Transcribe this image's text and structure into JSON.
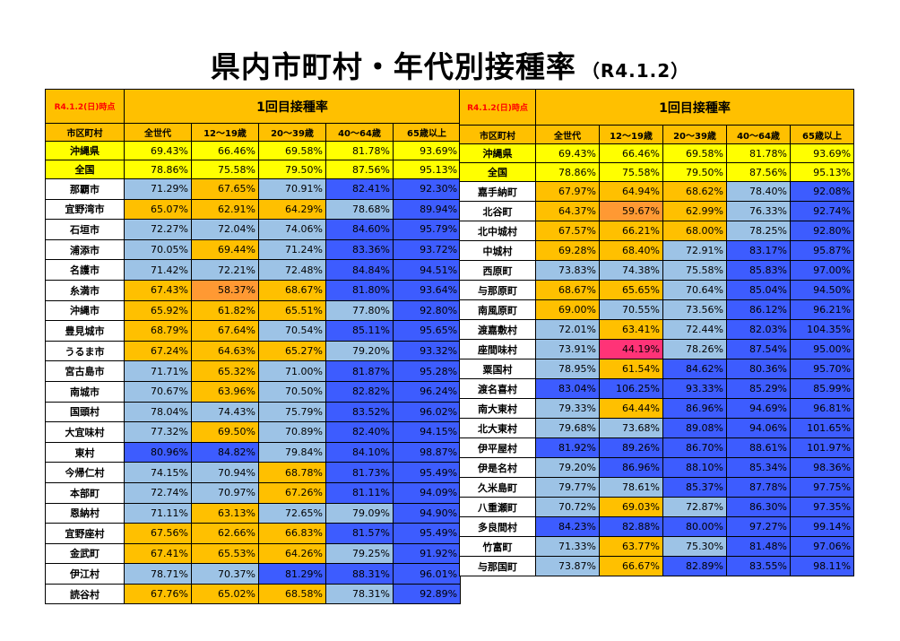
{
  "title": "県内市町村・年代別接種率",
  "subtitle": "（R4.1.2）",
  "legend_colors": {
    "yellow": "#FFFF00",
    "orange": "#FFC000",
    "dark_orange": "#FF9933",
    "pink": "#FF3377",
    "light_blue": "#9DC3E6",
    "blue": "#3D5CFF",
    "header": "#FFC000"
  },
  "tables": [
    {
      "as_of": "R4.1.2(日)時点",
      "header": "1回目接種率",
      "columns": [
        "市区町村",
        "全世代",
        "12～19歳",
        "20～39歳",
        "40～64歳",
        "65歳以上"
      ],
      "summary_rows": [
        {
          "name": "沖縄県",
          "values": [
            "69.43%",
            "66.46%",
            "69.58%",
            "81.78%",
            "93.69%"
          ]
        },
        {
          "name": "全国",
          "values": [
            "78.86%",
            "75.58%",
            "79.50%",
            "87.56%",
            "95.13%"
          ]
        }
      ],
      "rows": [
        {
          "name": "那覇市",
          "values": [
            "71.29%",
            "67.65%",
            "70.91%",
            "82.41%",
            "92.30%"
          ],
          "colors": [
            "lb",
            "or",
            "lb",
            "bl",
            "bl"
          ]
        },
        {
          "name": "宜野湾市",
          "values": [
            "65.07%",
            "62.91%",
            "64.29%",
            "78.68%",
            "89.94%"
          ],
          "colors": [
            "or",
            "or",
            "or",
            "lb",
            "bl"
          ]
        },
        {
          "name": "石垣市",
          "values": [
            "72.27%",
            "72.04%",
            "74.06%",
            "84.60%",
            "95.79%"
          ],
          "colors": [
            "lb",
            "lb",
            "lb",
            "bl",
            "bl"
          ]
        },
        {
          "name": "浦添市",
          "values": [
            "70.05%",
            "69.44%",
            "71.24%",
            "83.36%",
            "93.72%"
          ],
          "colors": [
            "lb",
            "or",
            "lb",
            "bl",
            "bl"
          ]
        },
        {
          "name": "名護市",
          "values": [
            "71.42%",
            "72.21%",
            "72.48%",
            "84.84%",
            "94.51%"
          ],
          "colors": [
            "lb",
            "lb",
            "lb",
            "bl",
            "bl"
          ]
        },
        {
          "name": "糸満市",
          "values": [
            "67.43%",
            "58.37%",
            "68.67%",
            "81.80%",
            "93.64%"
          ],
          "colors": [
            "or",
            "do",
            "or",
            "bl",
            "bl"
          ]
        },
        {
          "name": "沖縄市",
          "values": [
            "65.92%",
            "61.82%",
            "65.51%",
            "77.80%",
            "92.80%"
          ],
          "colors": [
            "or",
            "or",
            "or",
            "lb",
            "bl"
          ]
        },
        {
          "name": "豊見城市",
          "values": [
            "68.79%",
            "67.64%",
            "70.54%",
            "85.11%",
            "95.65%"
          ],
          "colors": [
            "or",
            "or",
            "lb",
            "bl",
            "bl"
          ]
        },
        {
          "name": "うるま市",
          "values": [
            "67.24%",
            "64.63%",
            "65.27%",
            "79.20%",
            "93.32%"
          ],
          "colors": [
            "or",
            "or",
            "or",
            "lb",
            "bl"
          ]
        },
        {
          "name": "宮古島市",
          "values": [
            "71.71%",
            "65.32%",
            "71.00%",
            "81.87%",
            "95.28%"
          ],
          "colors": [
            "lb",
            "or",
            "lb",
            "bl",
            "bl"
          ]
        },
        {
          "name": "南城市",
          "values": [
            "70.67%",
            "63.96%",
            "70.50%",
            "82.82%",
            "96.24%"
          ],
          "colors": [
            "lb",
            "or",
            "lb",
            "bl",
            "bl"
          ]
        },
        {
          "name": "国頭村",
          "values": [
            "78.04%",
            "74.43%",
            "75.79%",
            "83.52%",
            "96.02%"
          ],
          "colors": [
            "lb",
            "lb",
            "lb",
            "bl",
            "bl"
          ]
        },
        {
          "name": "大宜味村",
          "values": [
            "77.32%",
            "69.50%",
            "70.89%",
            "82.40%",
            "94.15%"
          ],
          "colors": [
            "lb",
            "or",
            "lb",
            "bl",
            "bl"
          ]
        },
        {
          "name": "東村",
          "values": [
            "80.96%",
            "84.82%",
            "79.84%",
            "84.10%",
            "98.87%"
          ],
          "colors": [
            "bl",
            "bl",
            "lb",
            "bl",
            "bl"
          ]
        },
        {
          "name": "今帰仁村",
          "values": [
            "74.15%",
            "70.94%",
            "68.78%",
            "81.73%",
            "95.49%"
          ],
          "colors": [
            "lb",
            "lb",
            "or",
            "bl",
            "bl"
          ]
        },
        {
          "name": "本部町",
          "values": [
            "72.74%",
            "70.97%",
            "67.26%",
            "81.11%",
            "94.09%"
          ],
          "colors": [
            "lb",
            "lb",
            "or",
            "bl",
            "bl"
          ]
        },
        {
          "name": "恩納村",
          "values": [
            "71.11%",
            "63.13%",
            "72.65%",
            "79.09%",
            "94.90%"
          ],
          "colors": [
            "lb",
            "or",
            "lb",
            "lb",
            "bl"
          ]
        },
        {
          "name": "宜野座村",
          "values": [
            "67.56%",
            "62.66%",
            "66.83%",
            "81.57%",
            "95.49%"
          ],
          "colors": [
            "or",
            "or",
            "or",
            "bl",
            "bl"
          ]
        },
        {
          "name": "金武町",
          "values": [
            "67.41%",
            "65.53%",
            "64.26%",
            "79.25%",
            "91.92%"
          ],
          "colors": [
            "or",
            "or",
            "or",
            "lb",
            "bl"
          ]
        },
        {
          "name": "伊江村",
          "values": [
            "78.71%",
            "70.37%",
            "81.29%",
            "88.31%",
            "96.01%"
          ],
          "colors": [
            "lb",
            "lb",
            "bl",
            "bl",
            "bl"
          ]
        },
        {
          "name": "読谷村",
          "values": [
            "67.76%",
            "65.02%",
            "68.58%",
            "78.31%",
            "92.89%"
          ],
          "colors": [
            "or",
            "or",
            "or",
            "lb",
            "bl"
          ]
        }
      ]
    },
    {
      "as_of": "R4.1.2(日)時点",
      "header": "1回目接種率",
      "columns": [
        "市区町村",
        "全世代",
        "12～19歳",
        "20～39歳",
        "40～64歳",
        "65歳以上"
      ],
      "summary_rows": [
        {
          "name": "沖縄県",
          "values": [
            "69.43%",
            "66.46%",
            "69.58%",
            "81.78%",
            "93.69%"
          ]
        },
        {
          "name": "全国",
          "values": [
            "78.86%",
            "75.58%",
            "79.50%",
            "87.56%",
            "95.13%"
          ]
        }
      ],
      "rows": [
        {
          "name": "嘉手納町",
          "values": [
            "67.97%",
            "64.94%",
            "68.62%",
            "78.40%",
            "92.08%"
          ],
          "colors": [
            "or",
            "or",
            "or",
            "lb",
            "bl"
          ]
        },
        {
          "name": "北谷町",
          "values": [
            "64.37%",
            "59.67%",
            "62.99%",
            "76.33%",
            "92.74%"
          ],
          "colors": [
            "or",
            "do",
            "or",
            "lb",
            "bl"
          ]
        },
        {
          "name": "北中城村",
          "values": [
            "67.57%",
            "66.21%",
            "68.00%",
            "78.25%",
            "92.80%"
          ],
          "colors": [
            "or",
            "or",
            "or",
            "lb",
            "bl"
          ]
        },
        {
          "name": "中城村",
          "values": [
            "69.28%",
            "68.40%",
            "72.91%",
            "83.17%",
            "95.87%"
          ],
          "colors": [
            "or",
            "or",
            "lb",
            "bl",
            "bl"
          ]
        },
        {
          "name": "西原町",
          "values": [
            "73.83%",
            "74.38%",
            "75.58%",
            "85.83%",
            "97.00%"
          ],
          "colors": [
            "lb",
            "lb",
            "lb",
            "bl",
            "bl"
          ]
        },
        {
          "name": "与那原町",
          "values": [
            "68.67%",
            "65.65%",
            "70.64%",
            "85.04%",
            "94.50%"
          ],
          "colors": [
            "or",
            "or",
            "lb",
            "bl",
            "bl"
          ]
        },
        {
          "name": "南風原町",
          "values": [
            "69.00%",
            "70.55%",
            "73.56%",
            "86.12%",
            "96.21%"
          ],
          "colors": [
            "or",
            "lb",
            "lb",
            "bl",
            "bl"
          ]
        },
        {
          "name": "渡嘉敷村",
          "values": [
            "72.01%",
            "63.41%",
            "72.44%",
            "82.03%",
            "104.35%"
          ],
          "colors": [
            "lb",
            "or",
            "lb",
            "bl",
            "bl"
          ]
        },
        {
          "name": "座間味村",
          "values": [
            "73.91%",
            "44.19%",
            "78.26%",
            "87.54%",
            "95.00%"
          ],
          "colors": [
            "lb",
            "pk",
            "lb",
            "bl",
            "bl"
          ]
        },
        {
          "name": "粟国村",
          "values": [
            "78.95%",
            "61.54%",
            "84.62%",
            "80.36%",
            "95.70%"
          ],
          "colors": [
            "lb",
            "or",
            "bl",
            "bl",
            "bl"
          ]
        },
        {
          "name": "渡名喜村",
          "values": [
            "83.04%",
            "106.25%",
            "93.33%",
            "85.29%",
            "85.99%"
          ],
          "colors": [
            "bl",
            "bl",
            "bl",
            "bl",
            "bl"
          ]
        },
        {
          "name": "南大東村",
          "values": [
            "79.33%",
            "64.44%",
            "86.96%",
            "94.69%",
            "96.81%"
          ],
          "colors": [
            "lb",
            "or",
            "bl",
            "bl",
            "bl"
          ]
        },
        {
          "name": "北大東村",
          "values": [
            "79.68%",
            "73.68%",
            "89.08%",
            "94.06%",
            "101.65%"
          ],
          "colors": [
            "lb",
            "lb",
            "bl",
            "bl",
            "bl"
          ]
        },
        {
          "name": "伊平屋村",
          "values": [
            "81.92%",
            "89.26%",
            "86.70%",
            "88.61%",
            "101.97%"
          ],
          "colors": [
            "bl",
            "bl",
            "bl",
            "bl",
            "bl"
          ]
        },
        {
          "name": "伊是名村",
          "values": [
            "79.20%",
            "86.96%",
            "88.10%",
            "85.34%",
            "98.36%"
          ],
          "colors": [
            "lb",
            "bl",
            "bl",
            "bl",
            "bl"
          ]
        },
        {
          "name": "久米島町",
          "values": [
            "79.77%",
            "78.61%",
            "85.37%",
            "87.78%",
            "97.75%"
          ],
          "colors": [
            "lb",
            "lb",
            "bl",
            "bl",
            "bl"
          ]
        },
        {
          "name": "八重瀬町",
          "values": [
            "70.72%",
            "69.03%",
            "72.87%",
            "86.30%",
            "97.35%"
          ],
          "colors": [
            "lb",
            "or",
            "lb",
            "bl",
            "bl"
          ]
        },
        {
          "name": "多良間村",
          "values": [
            "84.23%",
            "82.88%",
            "80.00%",
            "97.27%",
            "99.14%"
          ],
          "colors": [
            "bl",
            "bl",
            "bl",
            "bl",
            "bl"
          ]
        },
        {
          "name": "竹富町",
          "values": [
            "71.33%",
            "63.77%",
            "75.30%",
            "81.48%",
            "97.06%"
          ],
          "colors": [
            "lb",
            "or",
            "lb",
            "bl",
            "bl"
          ]
        },
        {
          "name": "与那国町",
          "values": [
            "73.87%",
            "66.67%",
            "82.89%",
            "83.55%",
            "98.11%"
          ],
          "colors": [
            "lb",
            "or",
            "bl",
            "bl",
            "bl"
          ]
        }
      ]
    }
  ]
}
